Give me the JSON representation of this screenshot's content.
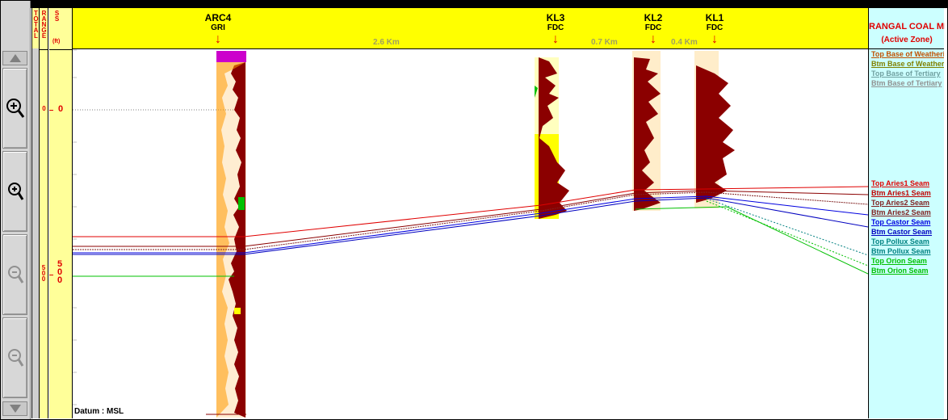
{
  "tracks": {
    "total_label": "TOTAL",
    "range_label": "RANGE",
    "ss_label": "SS",
    "ss_unit": "(ft)"
  },
  "depth_scale": {
    "ss_ticks": [
      "0",
      "500"
    ],
    "range_ticks": [
      "0",
      "500"
    ]
  },
  "wells": [
    {
      "name": "ARC4",
      "log": "GRI"
    },
    {
      "name": "KL3",
      "log": "FDC"
    },
    {
      "name": "KL2",
      "log": "FDC"
    },
    {
      "name": "KL1",
      "log": "FDC"
    }
  ],
  "distances": [
    "2.6 Km",
    "0.7 Km",
    "0.4 Km"
  ],
  "legend": {
    "title": "RANGAL COAL ME",
    "subtitle": "(Active Zone)",
    "top_items": [
      {
        "label": "Top Base of Weatheri",
        "color": "#c05000"
      },
      {
        "label": "Btm Base of Weather",
        "color": "#808000"
      },
      {
        "label": "Top Base of Tertiary",
        "color": "#70a0a0"
      },
      {
        "label": "Btm Base of Tertiary",
        "color": "#909090"
      }
    ],
    "seam_items": [
      {
        "label": "Top Aries1 Seam",
        "color": "#e00000"
      },
      {
        "label": "Btm Aries1 Seam",
        "color": "#c00000"
      },
      {
        "label": "Top Aries2 Seam",
        "color": "#802020"
      },
      {
        "label": "Btm Aries2 Seam",
        "color": "#802020"
      },
      {
        "label": "Top Castor Seam",
        "color": "#0000e0"
      },
      {
        "label": "Btm Castor Seam",
        "color": "#0000c0"
      },
      {
        "label": "Top Pollux Seam",
        "color": "#008080"
      },
      {
        "label": "Btm Pollux Seam",
        "color": "#008080"
      },
      {
        "label": "Top Orion Seam",
        "color": "#00c000"
      },
      {
        "label": "Btm Orion Seam",
        "color": "#00c000"
      }
    ]
  },
  "datum": "Datum : MSL",
  "colors": {
    "header_yellow": "#ffff00",
    "track_yellow": "#ffff99",
    "legend_bg": "#ccffff",
    "log_fill": "#8b0000",
    "coal_yellow": "#ffff00",
    "weathered_magenta": "#cc00cc"
  },
  "toolbar": {
    "scroll_up": "scroll-up",
    "zoom_in_large": "zoom-in",
    "zoom_in": "zoom-in",
    "zoom_out": "zoom-out",
    "zoom_out_large": "zoom-out",
    "scroll_down": "scroll-down"
  }
}
